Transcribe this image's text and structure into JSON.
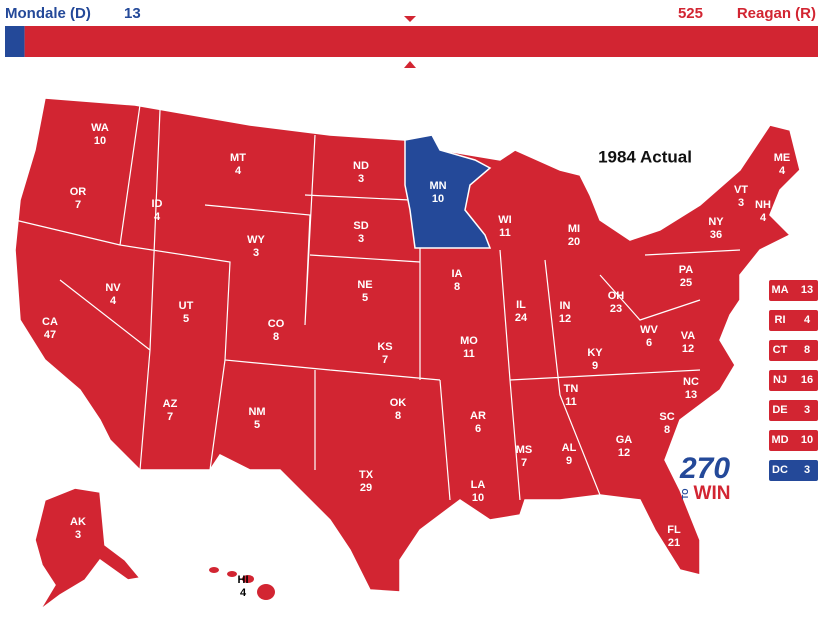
{
  "header": {
    "dem": {
      "name": "Mondale (D)",
      "votes": 13
    },
    "rep": {
      "name": "Reagan (R)",
      "votes": 525
    }
  },
  "colors": {
    "D": "#244999",
    "R": "#d22532"
  },
  "title": "1984 Actual",
  "states": [
    {
      "abbr": "WA",
      "votes": 10,
      "party": "R"
    },
    {
      "abbr": "OR",
      "votes": 7,
      "party": "R"
    },
    {
      "abbr": "CA",
      "votes": 47,
      "party": "R"
    },
    {
      "abbr": "NV",
      "votes": 4,
      "party": "R"
    },
    {
      "abbr": "ID",
      "votes": 4,
      "party": "R"
    },
    {
      "abbr": "MT",
      "votes": 4,
      "party": "R"
    },
    {
      "abbr": "WY",
      "votes": 3,
      "party": "R"
    },
    {
      "abbr": "UT",
      "votes": 5,
      "party": "R"
    },
    {
      "abbr": "AZ",
      "votes": 7,
      "party": "R"
    },
    {
      "abbr": "CO",
      "votes": 8,
      "party": "R"
    },
    {
      "abbr": "NM",
      "votes": 5,
      "party": "R"
    },
    {
      "abbr": "ND",
      "votes": 3,
      "party": "R"
    },
    {
      "abbr": "SD",
      "votes": 3,
      "party": "R"
    },
    {
      "abbr": "NE",
      "votes": 5,
      "party": "R"
    },
    {
      "abbr": "KS",
      "votes": 7,
      "party": "R"
    },
    {
      "abbr": "OK",
      "votes": 8,
      "party": "R"
    },
    {
      "abbr": "TX",
      "votes": 29,
      "party": "R"
    },
    {
      "abbr": "MN",
      "votes": 10,
      "party": "D"
    },
    {
      "abbr": "IA",
      "votes": 8,
      "party": "R"
    },
    {
      "abbr": "MO",
      "votes": 11,
      "party": "R"
    },
    {
      "abbr": "AR",
      "votes": 6,
      "party": "R"
    },
    {
      "abbr": "LA",
      "votes": 10,
      "party": "R"
    },
    {
      "abbr": "WI",
      "votes": 11,
      "party": "R"
    },
    {
      "abbr": "IL",
      "votes": 24,
      "party": "R"
    },
    {
      "abbr": "MI",
      "votes": 20,
      "party": "R"
    },
    {
      "abbr": "IN",
      "votes": 12,
      "party": "R"
    },
    {
      "abbr": "OH",
      "votes": 23,
      "party": "R"
    },
    {
      "abbr": "KY",
      "votes": 9,
      "party": "R"
    },
    {
      "abbr": "TN",
      "votes": 11,
      "party": "R"
    },
    {
      "abbr": "MS",
      "votes": 7,
      "party": "R"
    },
    {
      "abbr": "AL",
      "votes": 9,
      "party": "R"
    },
    {
      "abbr": "GA",
      "votes": 12,
      "party": "R"
    },
    {
      "abbr": "FL",
      "votes": 21,
      "party": "R"
    },
    {
      "abbr": "SC",
      "votes": 8,
      "party": "R"
    },
    {
      "abbr": "NC",
      "votes": 13,
      "party": "R"
    },
    {
      "abbr": "VA",
      "votes": 12,
      "party": "R"
    },
    {
      "abbr": "WV",
      "votes": 6,
      "party": "R"
    },
    {
      "abbr": "PA",
      "votes": 25,
      "party": "R"
    },
    {
      "abbr": "NY",
      "votes": 36,
      "party": "R"
    },
    {
      "abbr": "VT",
      "votes": 3,
      "party": "R"
    },
    {
      "abbr": "NH",
      "votes": 4,
      "party": "R"
    },
    {
      "abbr": "ME",
      "votes": 4,
      "party": "R"
    },
    {
      "abbr": "AK",
      "votes": 3,
      "party": "R"
    },
    {
      "abbr": "HI",
      "votes": 4,
      "party": "R"
    }
  ],
  "small_states": [
    {
      "abbr": "MA",
      "votes": 13,
      "party": "R"
    },
    {
      "abbr": "RI",
      "votes": 4,
      "party": "R"
    },
    {
      "abbr": "CT",
      "votes": 8,
      "party": "R"
    },
    {
      "abbr": "NJ",
      "votes": 16,
      "party": "R"
    },
    {
      "abbr": "DE",
      "votes": 3,
      "party": "R"
    },
    {
      "abbr": "MD",
      "votes": 10,
      "party": "R"
    },
    {
      "abbr": "DC",
      "votes": 3,
      "party": "D"
    }
  ],
  "logo": {
    "number": "270",
    "to": "TO",
    "win": "WIN"
  }
}
